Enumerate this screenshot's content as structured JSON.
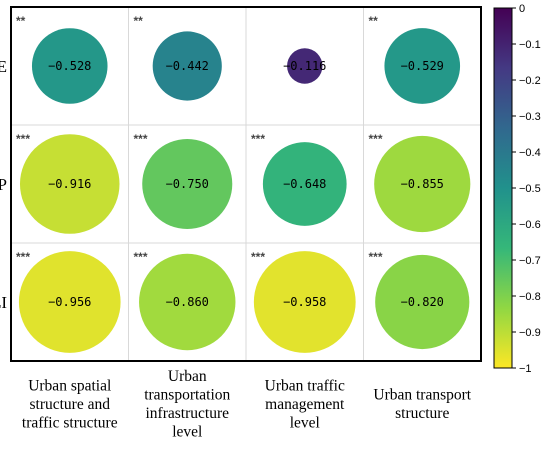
{
  "chart_data": {
    "type": "heatmap",
    "title": "",
    "rows": [
      "CE",
      "CEP",
      "CEI"
    ],
    "columns": [
      [
        "Urban spatial",
        "structure and",
        "traffic structure"
      ],
      [
        "Urban",
        "transportation",
        "infrastructure",
        "level"
      ],
      [
        "Urban traffic",
        "management",
        "level"
      ],
      [
        "Urban transport",
        "structure"
      ]
    ],
    "values": [
      [
        -0.528,
        -0.442,
        -0.116,
        -0.529
      ],
      [
        -0.916,
        -0.75,
        -0.648,
        -0.855
      ],
      [
        -0.956,
        -0.86,
        -0.958,
        -0.82
      ]
    ],
    "value_labels": [
      [
        "−0.528",
        "−0.442",
        "−0.116",
        "−0.529"
      ],
      [
        "−0.916",
        "−0.750",
        "−0.648",
        "−0.855"
      ],
      [
        "−0.956",
        "−0.860",
        "−0.958",
        "−0.820"
      ]
    ],
    "significance": [
      [
        "**",
        "**",
        "",
        "**"
      ],
      [
        "***",
        "***",
        "***",
        "***"
      ],
      [
        "***",
        "***",
        "***",
        "***"
      ]
    ],
    "marker": "circle sized by |value|",
    "colorbar": {
      "min": -1,
      "max": 0,
      "ticks": [
        0,
        -0.1,
        -0.2,
        -0.3,
        -0.4,
        -0.5,
        -0.6,
        -0.7,
        -0.8,
        -0.9,
        -1
      ],
      "tick_labels": [
        "0",
        "−0.1",
        "−0.2",
        "−0.3",
        "−0.4",
        "−0.5",
        "−0.6",
        "−0.7",
        "−0.8",
        "−0.9",
        "−1"
      ],
      "colormap": "viridis",
      "placement": "right"
    },
    "grid": true,
    "colors": {
      "stops": [
        "#fde725",
        "#90d743",
        "#35b779",
        "#21918c",
        "#31688e",
        "#443983",
        "#440154"
      ]
    }
  }
}
